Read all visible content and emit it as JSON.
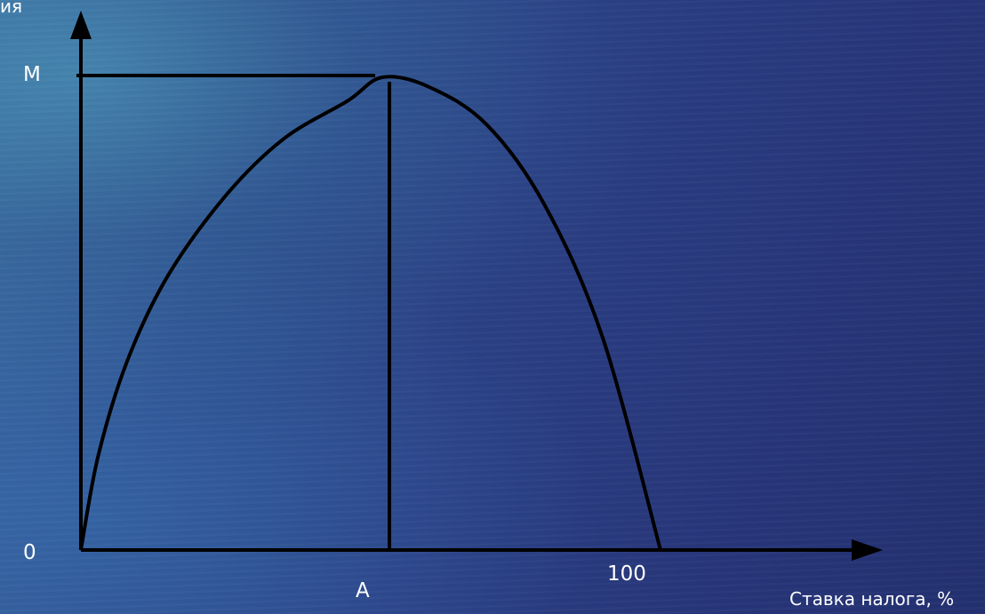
{
  "chart_data": {
    "type": "line",
    "title": "",
    "ylabel_fragment": "ия",
    "xlabel": "Ставка налога, %",
    "y_marks": {
      "origin": "0",
      "max": "M"
    },
    "x_marks": {
      "peak": "A",
      "end": "100"
    },
    "series": [
      {
        "x": [
          0,
          3,
          8,
          15,
          25,
          35,
          46,
          52,
          60,
          70,
          80,
          90,
          100
        ],
        "y": [
          0,
          20,
          40,
          58,
          75,
          87,
          95,
          100,
          98,
          90,
          73,
          45,
          0
        ]
      }
    ],
    "xlim": [
      0,
      100
    ],
    "ylim": [
      0,
      100
    ],
    "grid": false
  }
}
